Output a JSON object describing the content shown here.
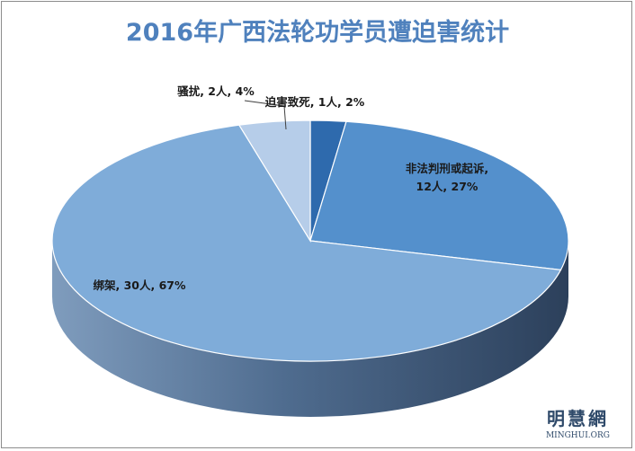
{
  "chart_data": {
    "type": "pie",
    "title": "2016年广西法轮功学员遭迫害统计",
    "slices": [
      {
        "label": "迫害致死, 1人, 2%",
        "label_lines": [
          "迫害致死, 1人, 2%"
        ],
        "value": 1,
        "percent": 2,
        "color": "#2e6aad",
        "side": "#1d4670"
      },
      {
        "label": "非法判刑或起诉, 12人, 27%",
        "label_lines": [
          "非法判刑或起诉,",
          "12人, 27%"
        ],
        "value": 12,
        "percent": 27,
        "color": "#5490cc",
        "side": "#3a5f85"
      },
      {
        "label": "绑架, 30人, 67%",
        "label_lines": [
          "绑架, 30人, 67%"
        ],
        "value": 30,
        "percent": 67,
        "color": "#7facd9",
        "side": "#566d8a"
      },
      {
        "label": "骚扰, 2人, 4%",
        "label_lines": [
          "骚扰, 2人, 4%"
        ],
        "value": 2,
        "percent": 4,
        "color": "#b6cde9",
        "side": "#8a9fb8"
      }
    ],
    "legend": "none",
    "style": "3d"
  },
  "watermark": {
    "cn": "明慧網",
    "en": "MINGHUI.ORG"
  }
}
